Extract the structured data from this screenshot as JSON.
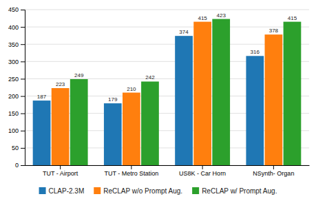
{
  "chart_data": {
    "type": "bar",
    "categories": [
      "TUT - Airport",
      "TUT - Metro Station",
      "US8K - Car Horn",
      "NSynth- Organ"
    ],
    "series": [
      {
        "name": "CLAP-2.3M",
        "values": [
          187,
          179,
          374,
          316
        ]
      },
      {
        "name": "ReCLAP w/o Prompt Aug.",
        "values": [
          223,
          210,
          415,
          378
        ]
      },
      {
        "name": "ReCLAP w/ Prompt Aug.",
        "values": [
          249,
          242,
          423,
          415
        ]
      }
    ],
    "ylim": [
      0,
      450
    ],
    "yticks": [
      0,
      50,
      100,
      150,
      200,
      250,
      300,
      350,
      400,
      450
    ],
    "grid": true,
    "data_labels": true,
    "legend": "bottom"
  }
}
